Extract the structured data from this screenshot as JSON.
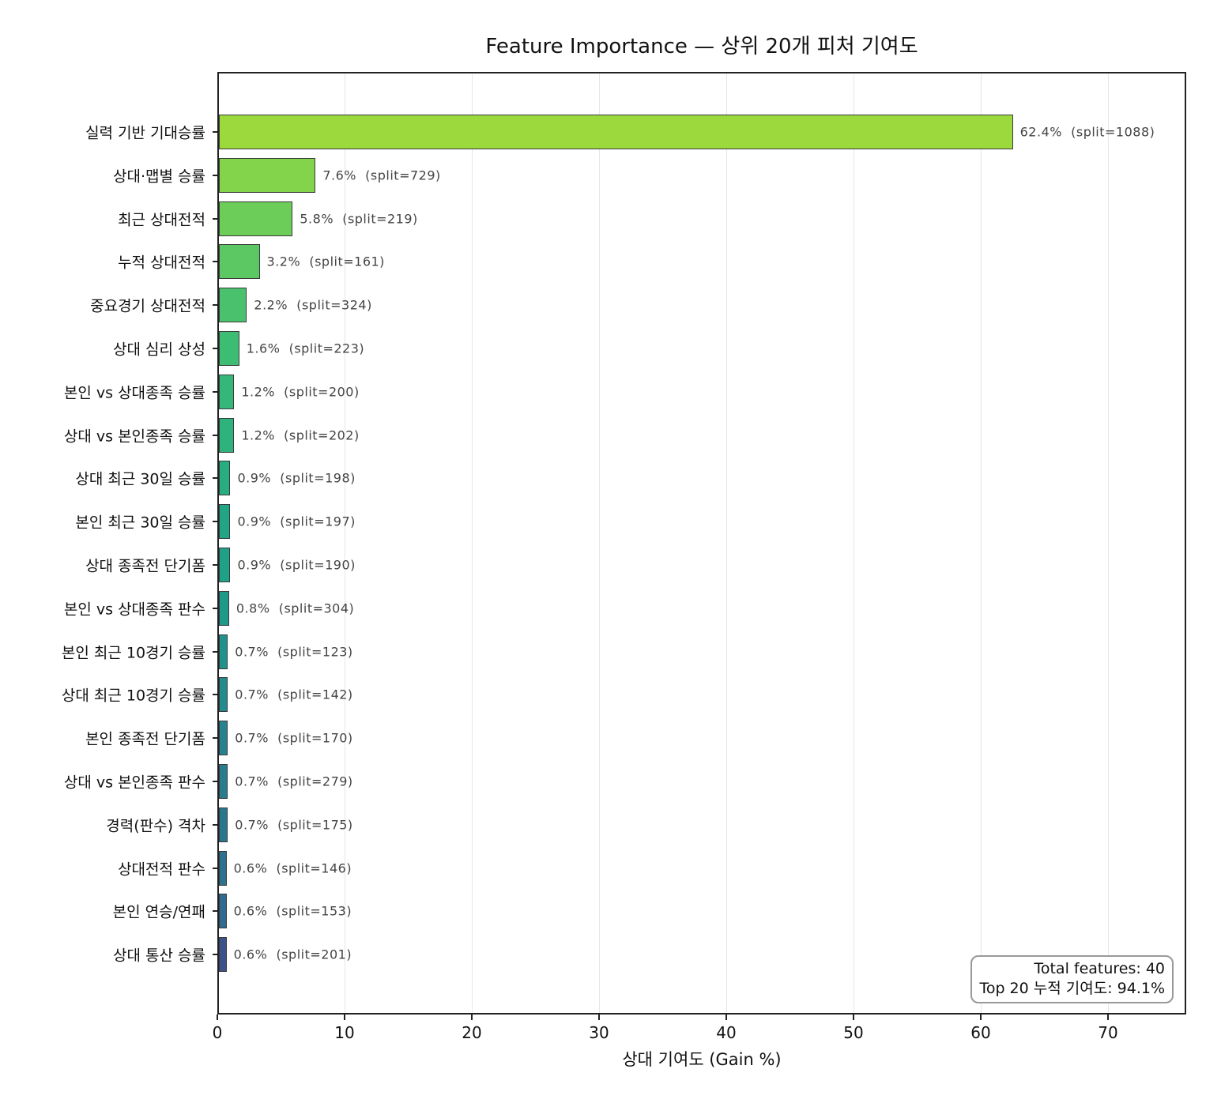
{
  "chart_data": {
    "type": "bar",
    "orientation": "horizontal",
    "title": "Feature Importance — 상위 20개 피처 기여도",
    "xlabel": "상대 기여도 (Gain %)",
    "ylabel": "",
    "xlim": [
      0,
      76
    ],
    "xticks": [
      "0",
      "10",
      "20",
      "30",
      "40",
      "50",
      "60",
      "70"
    ],
    "grid": "x",
    "categories": [
      "실력 기반 기대승률",
      "상대·맵별 승률",
      "최근 상대전적",
      "누적 상대전적",
      "중요경기 상대전적",
      "상대 심리 상성",
      "본인 vs 상대종족 승률",
      "상대 vs 본인종족 승률",
      "상대 최근 30일 승률",
      "본인 최근 30일 승률",
      "상대 종족전 단기폼",
      "본인 vs 상대종족 판수",
      "본인 최근 10경기 승률",
      "상대 최근 10경기 승률",
      "본인 종족전 단기폼",
      "상대 vs 본인종족 판수",
      "경력(판수) 격차",
      "상대전적 판수",
      "본인 연승/연패",
      "상대 통산 승률"
    ],
    "values": [
      62.4,
      7.6,
      5.8,
      3.2,
      2.2,
      1.6,
      1.2,
      1.2,
      0.9,
      0.9,
      0.9,
      0.8,
      0.7,
      0.7,
      0.7,
      0.7,
      0.7,
      0.6,
      0.6,
      0.6
    ],
    "splits": [
      1088,
      729,
      219,
      161,
      324,
      223,
      200,
      202,
      198,
      197,
      190,
      304,
      123,
      142,
      170,
      279,
      175,
      146,
      153,
      201
    ],
    "value_labels": [
      "62.4%  (split=1088)",
      "7.6%  (split=729)",
      "5.8%  (split=219)",
      "3.2%  (split=161)",
      "2.2%  (split=324)",
      "1.6%  (split=223)",
      "1.2%  (split=200)",
      "1.2%  (split=202)",
      "0.9%  (split=198)",
      "0.9%  (split=197)",
      "0.9%  (split=190)",
      "0.8%  (split=304)",
      "0.7%  (split=123)",
      "0.7%  (split=142)",
      "0.7%  (split=170)",
      "0.7%  (split=279)",
      "0.7%  (split=175)",
      "0.6%  (split=146)",
      "0.6%  (split=153)",
      "0.6%  (split=201)"
    ],
    "colors": [
      "#9bd93c",
      "#83d34b",
      "#6ccd59",
      "#5cc863",
      "#4ac16d",
      "#3dbc74",
      "#35b779",
      "#2eb37c",
      "#26ad81",
      "#21a685",
      "#1fa187",
      "#1f9a8a",
      "#21918c",
      "#238a8d",
      "#26828e",
      "#287c8e",
      "#2a768e",
      "#2c718e",
      "#306a8e",
      "#3b528b"
    ],
    "annotation": {
      "line1": "Total features: 40",
      "line2": "Top 20 누적 기여도: 94.1%"
    }
  }
}
